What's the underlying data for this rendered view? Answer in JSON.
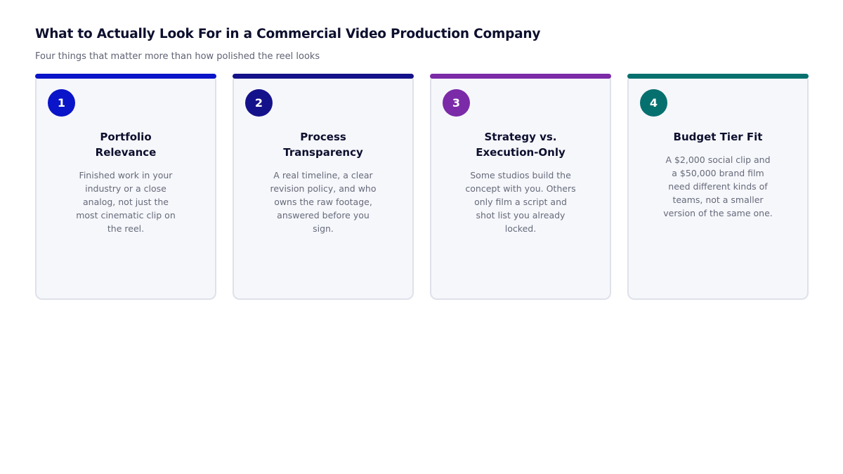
{
  "header": {
    "title": "What to Actually Look For in a Commercial Video Production Company",
    "subtitle": "Four things that matter more than how polished the reel looks"
  },
  "cards": [
    {
      "number": "1",
      "accent_color": "#0a14c8",
      "title_lines": [
        "Portfolio",
        "Relevance"
      ],
      "description_lines": [
        "Finished work in your",
        "industry or a close",
        "analog, not just the",
        "most cinematic clip on",
        "the reel."
      ]
    },
    {
      "number": "2",
      "accent_color": "#14128a",
      "title_lines": [
        "Process",
        "Transparency"
      ],
      "description_lines": [
        "A real timeline, a clear",
        "revision policy, and who",
        "owns the raw footage,",
        "answered before you",
        "sign."
      ]
    },
    {
      "number": "3",
      "accent_color": "#7b2aa8",
      "title_lines": [
        "Strategy vs.",
        "Execution-Only"
      ],
      "description_lines": [
        "Some studios build the",
        "concept with you. Others",
        "only film a script and",
        "shot list you already",
        "locked."
      ]
    },
    {
      "number": "4",
      "accent_color": "#06706f",
      "title_lines": [
        "Budget Tier Fit"
      ],
      "description_lines": [
        "A $2,000 social clip and",
        "a $50,000 brand film",
        "need different kinds of",
        "teams, not a smaller",
        "version of the same one."
      ]
    }
  ]
}
